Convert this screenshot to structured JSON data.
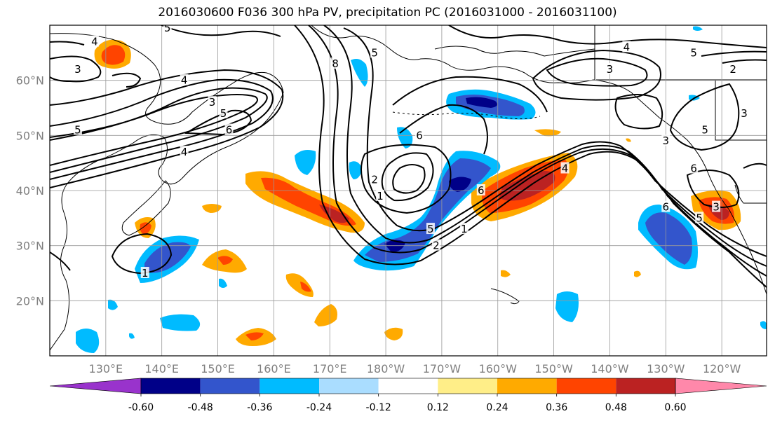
{
  "title": "2016030600 F036 300 hPa PV, precipitation PC (2016031000 - 2016031100)",
  "map": {
    "projection": "Plate Carree",
    "lon_range": [
      120,
      248
    ],
    "lat_range": [
      10,
      70
    ],
    "lat_ticks": [
      {
        "label": "20°N",
        "value": 20
      },
      {
        "label": "30°N",
        "value": 30
      },
      {
        "label": "40°N",
        "value": 40
      },
      {
        "label": "50°N",
        "value": 50
      },
      {
        "label": "60°N",
        "value": 60
      }
    ],
    "lon_ticks": [
      {
        "label": "130°E",
        "value": 130
      },
      {
        "label": "140°E",
        "value": 140
      },
      {
        "label": "150°E",
        "value": 150
      },
      {
        "label": "160°E",
        "value": 160
      },
      {
        "label": "170°E",
        "value": 170
      },
      {
        "label": "180°W",
        "value": 180
      },
      {
        "label": "170°W",
        "value": 190
      },
      {
        "label": "160°W",
        "value": 200
      },
      {
        "label": "150°W",
        "value": 210
      },
      {
        "label": "140°W",
        "value": 220
      },
      {
        "label": "130°W",
        "value": 230
      },
      {
        "label": "120°W",
        "value": 240
      }
    ],
    "grid": true,
    "pv_contour_labels": [
      {
        "text": "4",
        "lon": 128,
        "lat": 67
      },
      {
        "text": "3",
        "lon": 125,
        "lat": 62
      },
      {
        "text": "5",
        "lon": 125,
        "lat": 51
      },
      {
        "text": "5",
        "lon": 141,
        "lat": 69.5
      },
      {
        "text": "4",
        "lon": 144,
        "lat": 60
      },
      {
        "text": "3",
        "lon": 149,
        "lat": 56
      },
      {
        "text": "5",
        "lon": 151,
        "lat": 54
      },
      {
        "text": "6",
        "lon": 152,
        "lat": 51
      },
      {
        "text": "4",
        "lon": 144,
        "lat": 47
      },
      {
        "text": "8",
        "lon": 171,
        "lat": 63
      },
      {
        "text": "5",
        "lon": 178,
        "lat": 65
      },
      {
        "text": "6",
        "lon": 186,
        "lat": 50
      },
      {
        "text": "2",
        "lon": 178,
        "lat": 42
      },
      {
        "text": "1",
        "lon": 179,
        "lat": 39
      },
      {
        "text": "6",
        "lon": 197,
        "lat": 40
      },
      {
        "text": "5",
        "lon": 188,
        "lat": 33
      },
      {
        "text": "1",
        "lon": 194,
        "lat": 33
      },
      {
        "text": "2",
        "lon": 189,
        "lat": 30
      },
      {
        "text": "1",
        "lon": 137,
        "lat": 25
      },
      {
        "text": "4",
        "lon": 223,
        "lat": 66
      },
      {
        "text": "5",
        "lon": 235,
        "lat": 65
      },
      {
        "text": "3",
        "lon": 220,
        "lat": 62
      },
      {
        "text": "2",
        "lon": 242,
        "lat": 62
      },
      {
        "text": "3",
        "lon": 244,
        "lat": 54
      },
      {
        "text": "5",
        "lon": 237,
        "lat": 51
      },
      {
        "text": "3",
        "lon": 230,
        "lat": 49
      },
      {
        "text": "6",
        "lon": 235,
        "lat": 44
      },
      {
        "text": "4",
        "lon": 212,
        "lat": 44
      },
      {
        "text": "6",
        "lon": 230,
        "lat": 37
      },
      {
        "text": "3",
        "lon": 239,
        "lat": 37
      },
      {
        "text": "5",
        "lon": 236,
        "lat": 35
      }
    ]
  },
  "colorbar": {
    "levels": [
      "-0.60",
      "-0.48",
      "-0.36",
      "-0.24",
      "-0.12",
      "0.12",
      "0.24",
      "0.36",
      "0.48",
      "0.60"
    ],
    "colors": [
      "#9933cc",
      "#000088",
      "#3355cc",
      "#00bbff",
      "#aaddff",
      "#ffffff",
      "#ffee88",
      "#ffaa00",
      "#ff4400",
      "#bb2222",
      "#ff88aa"
    ]
  },
  "colors": {
    "neg_light": "#aaddff",
    "neg_mid": "#00bbff",
    "neg_strong": "#3355cc",
    "neg_max": "#000088",
    "pos_light": "#ffee88",
    "pos_mid": "#ffaa00",
    "pos_strong": "#ff4400",
    "pos_max": "#bb2222",
    "grid": "#999999",
    "contour": "#000000"
  }
}
